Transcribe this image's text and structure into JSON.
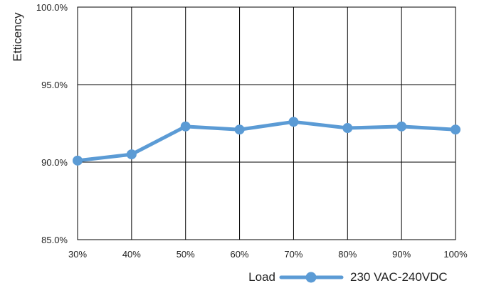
{
  "chart_data": {
    "type": "line",
    "title": "",
    "xlabel": "Load",
    "ylabel": "Etticency",
    "categories": [
      "30%",
      "40%",
      "50%",
      "60%",
      "70%",
      "80%",
      "90%",
      "100%"
    ],
    "y_ticks": [
      "85.0%",
      "90.0%",
      "95.0%",
      "100.0%"
    ],
    "ylim": [
      85,
      100
    ],
    "grid": true,
    "legend_position": "bottom-right",
    "series": [
      {
        "name": "230 VAC-240VDC",
        "color": "#5b9bd5",
        "values": [
          90.1,
          90.5,
          92.3,
          92.1,
          92.6,
          92.2,
          92.3,
          92.1
        ]
      }
    ]
  }
}
